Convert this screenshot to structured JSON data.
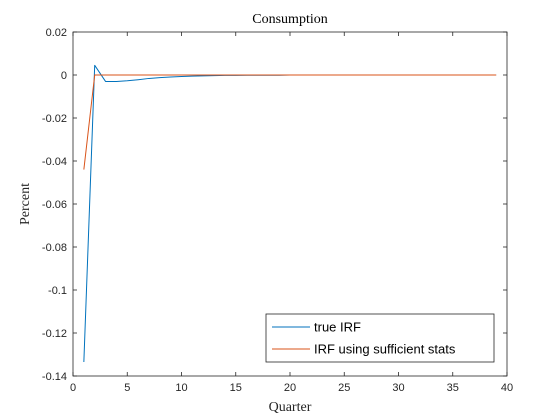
{
  "chart_data": {
    "type": "line",
    "title": "Consumption",
    "xlabel": "Quarter",
    "ylabel": "Percent",
    "xlim": [
      0,
      40
    ],
    "ylim": [
      -0.14,
      0.02
    ],
    "xticks": [
      0,
      5,
      10,
      15,
      20,
      25,
      30,
      35,
      40
    ],
    "yticks": [
      -0.14,
      -0.12,
      -0.1,
      -0.08,
      -0.06,
      -0.04,
      -0.02,
      0,
      0.02
    ],
    "xtick_labels": [
      "0",
      "5",
      "10",
      "15",
      "20",
      "25",
      "30",
      "35",
      "40"
    ],
    "ytick_labels": [
      "-0.14",
      "-0.12",
      "-0.1",
      "-0.08",
      "-0.06",
      "-0.04",
      "-0.02",
      "0",
      "0.02"
    ],
    "grid": false,
    "legend_position": "bottom-right",
    "series": [
      {
        "name": "true IRF",
        "color": "#0072BD",
        "x": [
          1,
          2,
          3,
          4,
          5,
          6,
          7,
          8,
          9,
          10,
          11,
          12,
          13,
          14,
          15,
          16,
          17,
          18,
          19,
          20,
          21,
          22,
          23,
          24,
          25,
          26,
          27,
          28,
          29,
          30,
          31,
          32,
          33,
          34,
          35,
          36,
          37,
          38,
          39
        ],
        "y": [
          -0.1335,
          0.0045,
          -0.003,
          -0.003,
          -0.0027,
          -0.0022,
          -0.0016,
          -0.0012,
          -0.0009,
          -0.0007,
          -0.0005,
          -0.0004,
          -0.0003,
          -0.0002,
          -0.0002,
          -0.0001,
          -0.0001,
          -0.0001,
          -0.0001,
          0,
          0,
          0,
          0,
          0,
          0,
          0,
          0,
          0,
          0,
          0,
          0,
          0,
          0,
          0,
          0,
          0,
          0,
          0,
          0
        ]
      },
      {
        "name": "IRF using sufficient stats",
        "color": "#D95319",
        "x": [
          1,
          2,
          3,
          4,
          5,
          6,
          7,
          8,
          9,
          10,
          11,
          12,
          13,
          14,
          15,
          16,
          17,
          18,
          19,
          20,
          21,
          22,
          23,
          24,
          25,
          26,
          27,
          28,
          29,
          30,
          31,
          32,
          33,
          34,
          35,
          36,
          37,
          38,
          39
        ],
        "y": [
          -0.044,
          0,
          0,
          0,
          0,
          0,
          0,
          0,
          0,
          0,
          0,
          0,
          0,
          0,
          0,
          0,
          0,
          0,
          0,
          0,
          0,
          0,
          0,
          0,
          0,
          0,
          0,
          0,
          0,
          0,
          0,
          0,
          0,
          0,
          0,
          0,
          0,
          0,
          0
        ]
      }
    ]
  }
}
